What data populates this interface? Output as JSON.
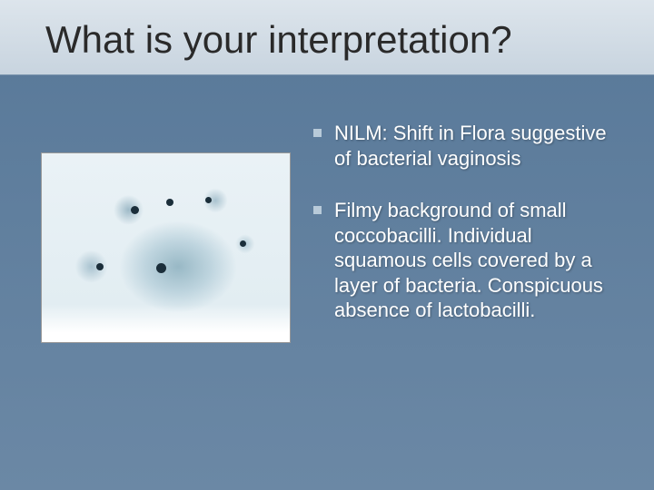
{
  "slide": {
    "title": "What is your interpretation?",
    "background_gradient": [
      "#5a7a9a",
      "#6b88a5"
    ],
    "title_bar_gradient": [
      "#dde5ec",
      "#c8d4df"
    ],
    "title_fontsize": 42,
    "title_color": "#2a2a2a",
    "bullet_fontsize": 22,
    "bullet_text_color": "#ffffff",
    "bullet_marker_color": "#b8cad9",
    "bullets": [
      "NILM: Shift in Flora suggestive of bacterial vaginosis",
      "Filmy background of small coccobacilli. Individual squamous cells covered by a layer of bacteria. Conspicuous absence of lactobacilli."
    ],
    "image": {
      "type": "microscopy-photo",
      "description": "Cytology smear with pale blue filmy background, scattered squamous cells with dark nuclei, coccobacilli layer",
      "background_color": "#eaf2f6",
      "cell_tint": "#5a8ca0",
      "nucleus_color": "#1b2e3a"
    }
  }
}
